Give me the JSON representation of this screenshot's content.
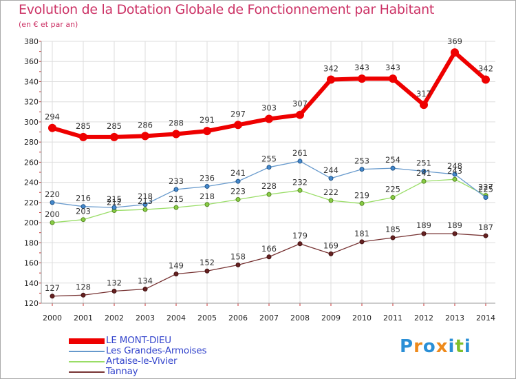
{
  "header": {
    "title": "Evolution de la Dotation Globale de Fonctionnement par Habitant",
    "subtitle": "(en € et par an)"
  },
  "chart_data": {
    "type": "line",
    "title": "Evolution de la Dotation Globale de Fonctionnement par Habitant",
    "subtitle": "(en € et par an)",
    "xlabel": "",
    "ylabel": "",
    "x": [
      2000,
      2001,
      2002,
      2003,
      2004,
      2005,
      2006,
      2007,
      2008,
      2009,
      2010,
      2011,
      2012,
      2013,
      2014
    ],
    "ylim": [
      120,
      380
    ],
    "yticks": [
      120,
      140,
      160,
      180,
      200,
      220,
      240,
      260,
      280,
      300,
      320,
      340,
      360,
      380
    ],
    "grid": true,
    "legend_position": "bottom-left",
    "series": [
      {
        "name": "LE MONT-DIEU",
        "color": "#ee0000",
        "values": [
          294,
          285,
          285,
          286,
          288,
          291,
          297,
          303,
          307,
          342,
          343,
          343,
          317,
          369,
          342
        ]
      },
      {
        "name": "Les Grandes-Armoises",
        "color": "#6699cc",
        "values": [
          220,
          216,
          215,
          218,
          233,
          236,
          241,
          255,
          261,
          244,
          253,
          254,
          251,
          248,
          225
        ]
      },
      {
        "name": "Artaise-le-Vivier",
        "color": "#99dd66",
        "values": [
          200,
          203,
          212,
          213,
          215,
          218,
          223,
          228,
          232,
          222,
          219,
          225,
          241,
          243,
          227
        ]
      },
      {
        "name": "Tannay",
        "color": "#773333",
        "values": [
          127,
          128,
          132,
          134,
          149,
          152,
          158,
          166,
          179,
          169,
          181,
          185,
          189,
          189,
          187
        ]
      }
    ]
  },
  "brand": {
    "letters": [
      "P",
      "r",
      "o",
      "x",
      "i",
      "t",
      "i"
    ],
    "colors": [
      "#2a8fd6",
      "#ee8a1c",
      "#2a8fd6",
      "#ee8a1c",
      "#2a8fd6",
      "#7fbf2a",
      "#2a8fd6"
    ]
  }
}
